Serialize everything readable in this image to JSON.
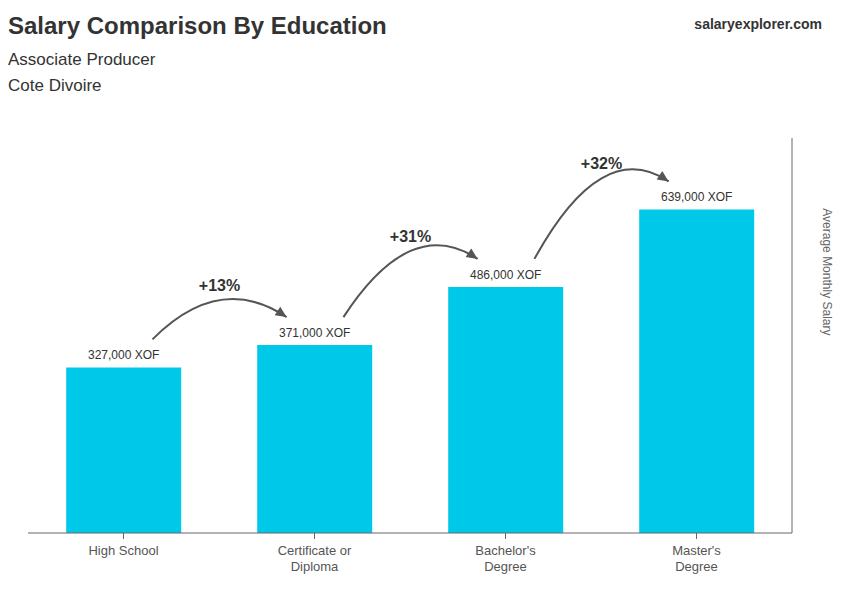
{
  "chart_data": {
    "type": "bar",
    "title": "Salary Comparison By Education",
    "subtitle": "Associate Producer",
    "ylabel": "Average Monthly Salary",
    "categories": [
      "High School",
      "Certificate or\nDiploma",
      "Bachelor's\nDegree",
      "Master's\nDegree"
    ],
    "values": [
      327000,
      371000,
      486000,
      639000
    ],
    "value_labels": [
      "327,000 XOF",
      "371,000 XOF",
      "486,000 XOF",
      "639,000 XOF"
    ],
    "data_labels": true,
    "color": "#00c8e8",
    "ylim": [
      0,
      780000
    ],
    "tick_labels": "x",
    "annotations": [
      {
        "text": "Cote Divoire"
      },
      {
        "text": "salary"
      },
      {
        "text": "explorer.com"
      },
      {
        "text": "+13%",
        "from": "High School",
        "to": "Certificate or\nDiploma"
      },
      {
        "text": "+31%",
        "from": "Certificate or\nDiploma",
        "to": "Bachelor's\nDegree"
      },
      {
        "text": "+32%",
        "from": "Bachelor's\nDegree",
        "to": "Master's\nDegree"
      }
    ]
  }
}
